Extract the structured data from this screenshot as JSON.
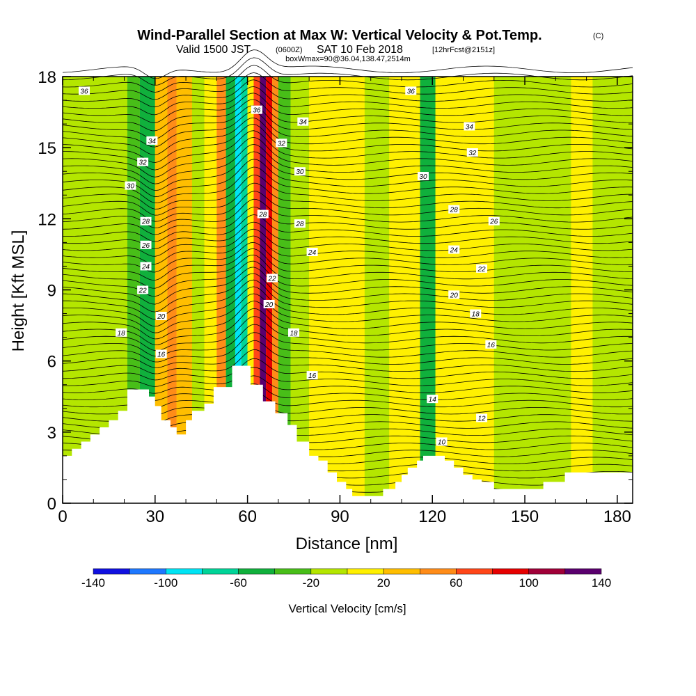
{
  "title": {
    "main": "Wind-Parallel Section at Max W: Vertical Velocity & Pot.Temp.",
    "copyright": "(C)",
    "valid_prefix": "Valid 1500 JST",
    "valid_utc": "(0600Z)",
    "valid_date": "SAT 10 Feb 2018",
    "forecast_info": "[12hrFcst@2151z]",
    "box_info": "boxWmax=90@36.04,138.47,2514m"
  },
  "chart_data": {
    "type": "heatmap",
    "xlabel": "Distance [nm]",
    "ylabel": "Height [Kft MSL]",
    "xlim": [
      0,
      185
    ],
    "ylim": [
      0,
      18
    ],
    "x_ticks": [
      0,
      30,
      60,
      90,
      120,
      150,
      180
    ],
    "x_tick_labels": [
      "0",
      "30",
      "60",
      "90",
      "120",
      "150",
      "180"
    ],
    "y_ticks": [
      0,
      3,
      6,
      9,
      12,
      15,
      18
    ],
    "y_tick_labels": [
      "0",
      "3",
      "6",
      "9",
      "12",
      "15",
      "18"
    ],
    "colorbar": {
      "title": "Vertical Velocity [cm/s]",
      "levels": [
        -140,
        -120,
        -100,
        -80,
        -60,
        -40,
        -20,
        0,
        20,
        40,
        60,
        80,
        100,
        120,
        140
      ],
      "tick_values": [
        -140,
        -100,
        -60,
        -20,
        20,
        60,
        100,
        140
      ],
      "tick_labels": [
        "-140",
        "-100",
        "-60",
        "-20",
        "20",
        "60",
        "100",
        "140"
      ],
      "colors": [
        "#1010e0",
        "#1e78ff",
        "#00e4f4",
        "#00d498",
        "#10b03c",
        "#48be18",
        "#b4e600",
        "#fff000",
        "#ffbe00",
        "#ff8c18",
        "#ff4618",
        "#e60000",
        "#a00038",
        "#5a006e"
      ]
    },
    "vertical_velocity_bands": [
      {
        "x": [
          0,
          21
        ],
        "value": -5
      },
      {
        "x": [
          21,
          25
        ],
        "value": -30
      },
      {
        "x": [
          25,
          30
        ],
        "value": -50
      },
      {
        "x": [
          30,
          34
        ],
        "value": 30
      },
      {
        "x": [
          34,
          37
        ],
        "value": 50
      },
      {
        "x": [
          37,
          42
        ],
        "value": 20
      },
      {
        "x": [
          42,
          46
        ],
        "value": -10
      },
      {
        "x": [
          46,
          50
        ],
        "value": 10
      },
      {
        "x": [
          50,
          53
        ],
        "value": 45
      },
      {
        "x": [
          53,
          56
        ],
        "value": -50
      },
      {
        "x": [
          56,
          58
        ],
        "value": -95
      },
      {
        "x": [
          58,
          60
        ],
        "value": -70
      },
      {
        "x": [
          60,
          62
        ],
        "value": 10
      },
      {
        "x": [
          62,
          64
        ],
        "value": 60
      },
      {
        "x": [
          64,
          66
        ],
        "value": 125
      },
      {
        "x": [
          66,
          68
        ],
        "value": 95
      },
      {
        "x": [
          68,
          70
        ],
        "value": 50
      },
      {
        "x": [
          70,
          74
        ],
        "value": -30
      },
      {
        "x": [
          74,
          80
        ],
        "value": -5
      },
      {
        "x": [
          80,
          98
        ],
        "value": 10
      },
      {
        "x": [
          98,
          106
        ],
        "value": -5
      },
      {
        "x": [
          106,
          116
        ],
        "value": 10
      },
      {
        "x": [
          116,
          121
        ],
        "value": -45
      },
      {
        "x": [
          121,
          140
        ],
        "value": 10
      },
      {
        "x": [
          140,
          150
        ],
        "value": -5
      },
      {
        "x": [
          150,
          165
        ],
        "value": -5
      },
      {
        "x": [
          165,
          172
        ],
        "value": 10
      },
      {
        "x": [
          172,
          185
        ],
        "value": -5
      }
    ],
    "terrain_height": [
      {
        "x": 0,
        "h": 2.0
      },
      {
        "x": 3,
        "h": 2.0
      },
      {
        "x": 3,
        "h": 2.3
      },
      {
        "x": 6,
        "h": 2.3
      },
      {
        "x": 6,
        "h": 2.6
      },
      {
        "x": 9,
        "h": 2.6
      },
      {
        "x": 9,
        "h": 2.9
      },
      {
        "x": 12,
        "h": 2.9
      },
      {
        "x": 12,
        "h": 3.2
      },
      {
        "x": 15,
        "h": 3.2
      },
      {
        "x": 15,
        "h": 3.5
      },
      {
        "x": 18,
        "h": 3.5
      },
      {
        "x": 18,
        "h": 3.9
      },
      {
        "x": 21,
        "h": 3.9
      },
      {
        "x": 21,
        "h": 4.8
      },
      {
        "x": 28,
        "h": 4.8
      },
      {
        "x": 28,
        "h": 4.5
      },
      {
        "x": 30,
        "h": 4.5
      },
      {
        "x": 30,
        "h": 4.1
      },
      {
        "x": 32,
        "h": 4.1
      },
      {
        "x": 32,
        "h": 3.5
      },
      {
        "x": 35,
        "h": 3.5
      },
      {
        "x": 35,
        "h": 3.2
      },
      {
        "x": 37,
        "h": 3.2
      },
      {
        "x": 37,
        "h": 2.9
      },
      {
        "x": 40,
        "h": 2.9
      },
      {
        "x": 40,
        "h": 3.5
      },
      {
        "x": 42,
        "h": 3.5
      },
      {
        "x": 42,
        "h": 3.9
      },
      {
        "x": 46,
        "h": 3.9
      },
      {
        "x": 46,
        "h": 4.2
      },
      {
        "x": 49,
        "h": 4.2
      },
      {
        "x": 49,
        "h": 4.9
      },
      {
        "x": 55,
        "h": 4.9
      },
      {
        "x": 55,
        "h": 5.8
      },
      {
        "x": 61,
        "h": 5.8
      },
      {
        "x": 61,
        "h": 5.0
      },
      {
        "x": 65,
        "h": 5.0
      },
      {
        "x": 65,
        "h": 4.3
      },
      {
        "x": 69,
        "h": 4.3
      },
      {
        "x": 69,
        "h": 3.8
      },
      {
        "x": 73,
        "h": 3.8
      },
      {
        "x": 73,
        "h": 3.3
      },
      {
        "x": 76,
        "h": 3.3
      },
      {
        "x": 76,
        "h": 2.6
      },
      {
        "x": 80,
        "h": 2.6
      },
      {
        "x": 80,
        "h": 2.0
      },
      {
        "x": 83,
        "h": 2.0
      },
      {
        "x": 83,
        "h": 1.8
      },
      {
        "x": 86,
        "h": 1.8
      },
      {
        "x": 86,
        "h": 1.3
      },
      {
        "x": 89,
        "h": 1.3
      },
      {
        "x": 89,
        "h": 0.9
      },
      {
        "x": 92,
        "h": 0.9
      },
      {
        "x": 92,
        "h": 0.6
      },
      {
        "x": 94,
        "h": 0.6
      },
      {
        "x": 94,
        "h": 0.3
      },
      {
        "x": 104,
        "h": 0.3
      },
      {
        "x": 104,
        "h": 0.6
      },
      {
        "x": 108,
        "h": 0.6
      },
      {
        "x": 108,
        "h": 0.9
      },
      {
        "x": 110,
        "h": 0.9
      },
      {
        "x": 110,
        "h": 1.2
      },
      {
        "x": 112,
        "h": 1.2
      },
      {
        "x": 112,
        "h": 1.5
      },
      {
        "x": 115,
        "h": 1.5
      },
      {
        "x": 115,
        "h": 1.8
      },
      {
        "x": 117,
        "h": 1.8
      },
      {
        "x": 117,
        "h": 2.0
      },
      {
        "x": 124,
        "h": 2.0
      },
      {
        "x": 124,
        "h": 1.8
      },
      {
        "x": 127,
        "h": 1.8
      },
      {
        "x": 127,
        "h": 1.5
      },
      {
        "x": 130,
        "h": 1.5
      },
      {
        "x": 130,
        "h": 1.2
      },
      {
        "x": 133,
        "h": 1.2
      },
      {
        "x": 133,
        "h": 1.0
      },
      {
        "x": 136,
        "h": 1.0
      },
      {
        "x": 136,
        "h": 0.9
      },
      {
        "x": 140,
        "h": 0.9
      },
      {
        "x": 140,
        "h": 0.6
      },
      {
        "x": 156,
        "h": 0.6
      },
      {
        "x": 156,
        "h": 0.9
      },
      {
        "x": 163,
        "h": 0.9
      },
      {
        "x": 163,
        "h": 1.3
      },
      {
        "x": 185,
        "h": 1.3
      }
    ],
    "pot_temp_contour_labels": [
      {
        "text": "36",
        "x": 7,
        "y": 17.4
      },
      {
        "text": "36",
        "x": 113,
        "y": 17.4
      },
      {
        "text": "36",
        "x": 63,
        "y": 16.6
      },
      {
        "text": "34",
        "x": 78,
        "y": 16.1
      },
      {
        "text": "34",
        "x": 132,
        "y": 15.9
      },
      {
        "text": "34",
        "x": 29,
        "y": 15.3
      },
      {
        "text": "32",
        "x": 71,
        "y": 15.2
      },
      {
        "text": "32",
        "x": 133,
        "y": 14.8
      },
      {
        "text": "32",
        "x": 26,
        "y": 14.4
      },
      {
        "text": "30",
        "x": 77,
        "y": 14.0
      },
      {
        "text": "30",
        "x": 117,
        "y": 13.8
      },
      {
        "text": "30",
        "x": 22,
        "y": 13.4
      },
      {
        "text": "28",
        "x": 127,
        "y": 12.4
      },
      {
        "text": "28",
        "x": 65,
        "y": 12.2
      },
      {
        "text": "28",
        "x": 27,
        "y": 11.9
      },
      {
        "text": "28",
        "x": 77,
        "y": 11.8
      },
      {
        "text": "26",
        "x": 140,
        "y": 11.9
      },
      {
        "text": "26",
        "x": 27,
        "y": 10.9
      },
      {
        "text": "24",
        "x": 81,
        "y": 10.6
      },
      {
        "text": "24",
        "x": 127,
        "y": 10.7
      },
      {
        "text": "24",
        "x": 27,
        "y": 10.0
      },
      {
        "text": "22",
        "x": 68,
        "y": 9.5
      },
      {
        "text": "22",
        "x": 136,
        "y": 9.9
      },
      {
        "text": "22",
        "x": 26,
        "y": 9.0
      },
      {
        "text": "20",
        "x": 127,
        "y": 8.8
      },
      {
        "text": "20",
        "x": 67,
        "y": 8.4
      },
      {
        "text": "20",
        "x": 32,
        "y": 7.9
      },
      {
        "text": "18",
        "x": 134,
        "y": 8.0
      },
      {
        "text": "18",
        "x": 75,
        "y": 7.2
      },
      {
        "text": "18",
        "x": 19,
        "y": 7.2
      },
      {
        "text": "16",
        "x": 139,
        "y": 6.7
      },
      {
        "text": "16",
        "x": 32,
        "y": 6.3
      },
      {
        "text": "16",
        "x": 81,
        "y": 5.4
      },
      {
        "text": "14",
        "x": 120,
        "y": 4.4
      },
      {
        "text": "12",
        "x": 136,
        "y": 3.6
      },
      {
        "text": "10",
        "x": 123,
        "y": 2.6
      }
    ]
  }
}
